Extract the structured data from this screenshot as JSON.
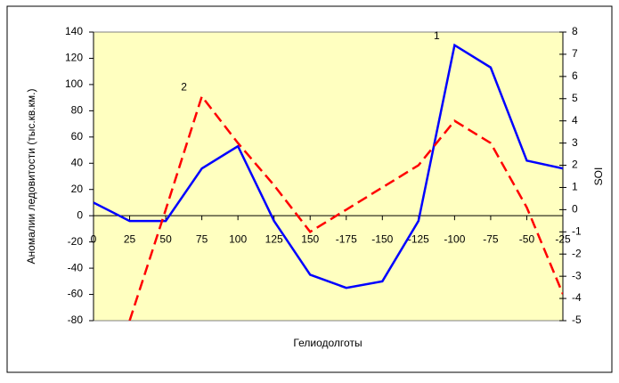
{
  "chart_data": {
    "type": "line",
    "x_label": "Гелиодолготы",
    "y_label": "Аномалии ледовитости (тыс.кв.км.)",
    "y2_label": "SOI",
    "categories": [
      "0",
      "25",
      "50",
      "75",
      "100",
      "125",
      "150",
      "-175",
      "-150",
      "-125",
      "-100",
      "-75",
      "-50",
      "-25"
    ],
    "series": [
      {
        "name": "1",
        "color": "#0000ff",
        "dash": false,
        "values": [
          10,
          -4,
          -4,
          36,
          53,
          -4,
          -45,
          -55,
          -50,
          -4,
          130,
          113,
          42,
          36
        ]
      },
      {
        "name": "2",
        "color": "#ff0000",
        "dash": true,
        "axis": "y2",
        "values": [
          null,
          -5,
          0,
          5.1,
          3,
          1.1,
          -1,
          0,
          1,
          2,
          4,
          3,
          0.1,
          -3.8
        ]
      }
    ],
    "ylim": [
      -80,
      140
    ],
    "yticks": [
      -80,
      -60,
      -40,
      -20,
      0,
      20,
      40,
      60,
      80,
      100,
      120,
      140
    ],
    "y2lim": [
      -5,
      8
    ],
    "y2ticks": [
      -5,
      -4,
      -3,
      -2,
      -1,
      0,
      1,
      2,
      3,
      4,
      5,
      6,
      7,
      8
    ],
    "plot_background": "#ffffc0"
  }
}
